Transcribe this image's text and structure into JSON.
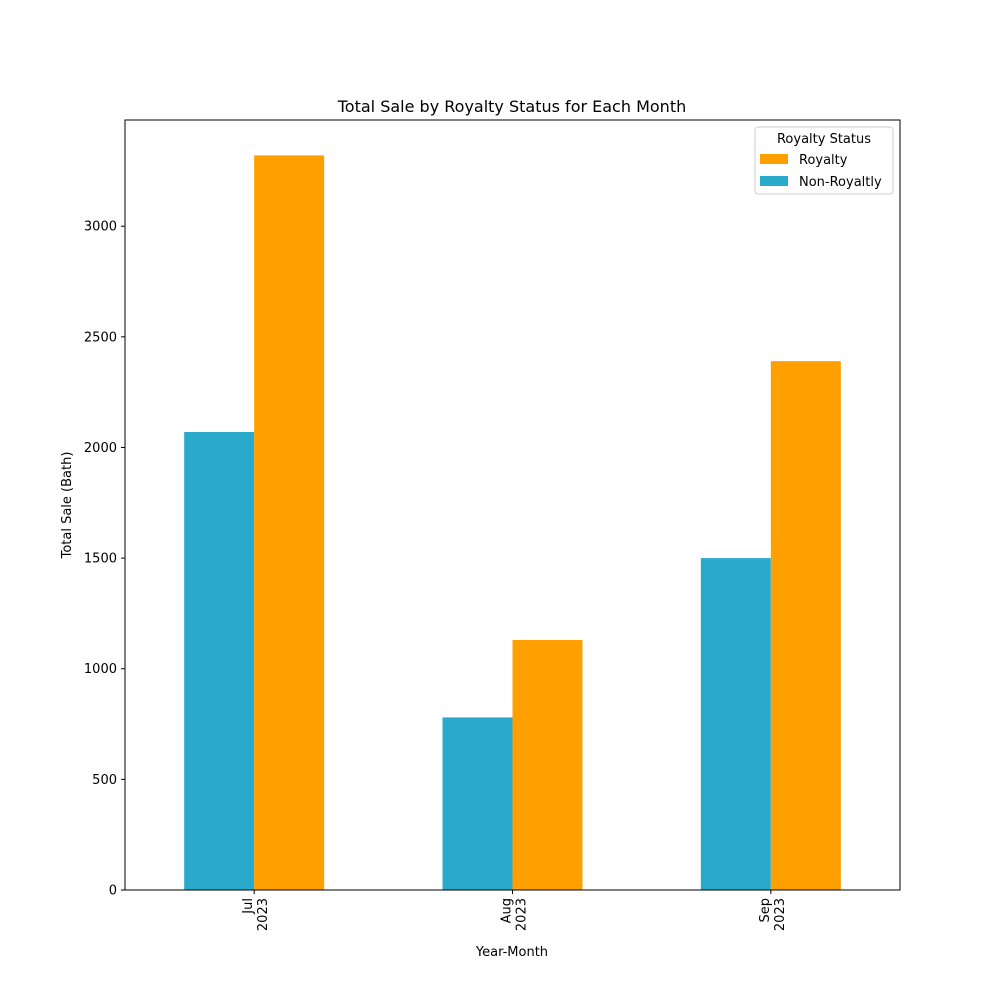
{
  "chart_data": {
    "type": "bar",
    "title": "Total Sale by Royalty Status for Each Month",
    "xlabel": "Year-Month",
    "ylabel": "Total Sale (Bath)",
    "categories": [
      [
        "Jul",
        "2023"
      ],
      [
        "Aug",
        "2023"
      ],
      [
        "Sep",
        "2023"
      ]
    ],
    "series": [
      {
        "name": "Non-Royaltly",
        "color": "#2aaacb",
        "values": [
          2070,
          780,
          1500
        ]
      },
      {
        "name": "Royalty",
        "color": "#ffa000",
        "values": [
          3320,
          1130,
          2390
        ]
      }
    ],
    "ylim": [
      0,
      3480
    ],
    "yticks": [
      0,
      500,
      1000,
      1500,
      2000,
      2500,
      3000
    ],
    "grid": false,
    "legend": {
      "title": "Royalty Status",
      "placement": "top-right",
      "order": [
        "Royalty",
        "Non-Royaltly"
      ]
    }
  }
}
